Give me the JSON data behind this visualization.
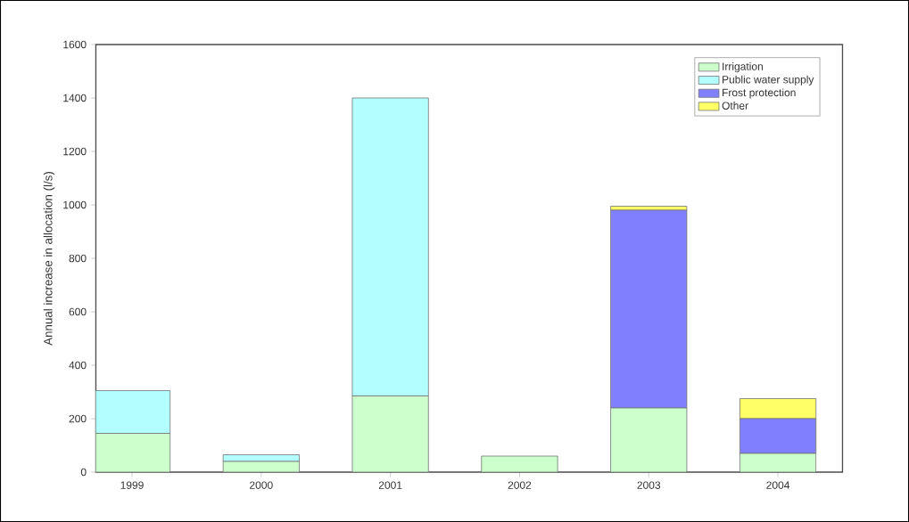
{
  "chart_data": {
    "type": "bar",
    "stacked": true,
    "ylabel": "Annual increase in allocation (l/s)",
    "categories": [
      "1999",
      "2000",
      "2001",
      "2002",
      "2003",
      "2004"
    ],
    "series": [
      {
        "name": "Irrigation",
        "color": "#ccffcc",
        "values": [
          145,
          40,
          285,
          60,
          240,
          70
        ]
      },
      {
        "name": "Public water supply",
        "color": "#b3ffff",
        "values": [
          160,
          25,
          1115,
          0,
          0,
          0
        ]
      },
      {
        "name": "Frost protection",
        "color": "#8080ff",
        "values": [
          0,
          0,
          0,
          0,
          740,
          130
        ]
      },
      {
        "name": "Other",
        "color": "#ffff66",
        "values": [
          0,
          0,
          0,
          0,
          15,
          75
        ]
      }
    ],
    "ylim": [
      0,
      1600
    ],
    "yticks": [
      0,
      200,
      400,
      600,
      800,
      1000,
      1200,
      1400,
      1600
    ],
    "grid": false,
    "legend": "top right"
  }
}
